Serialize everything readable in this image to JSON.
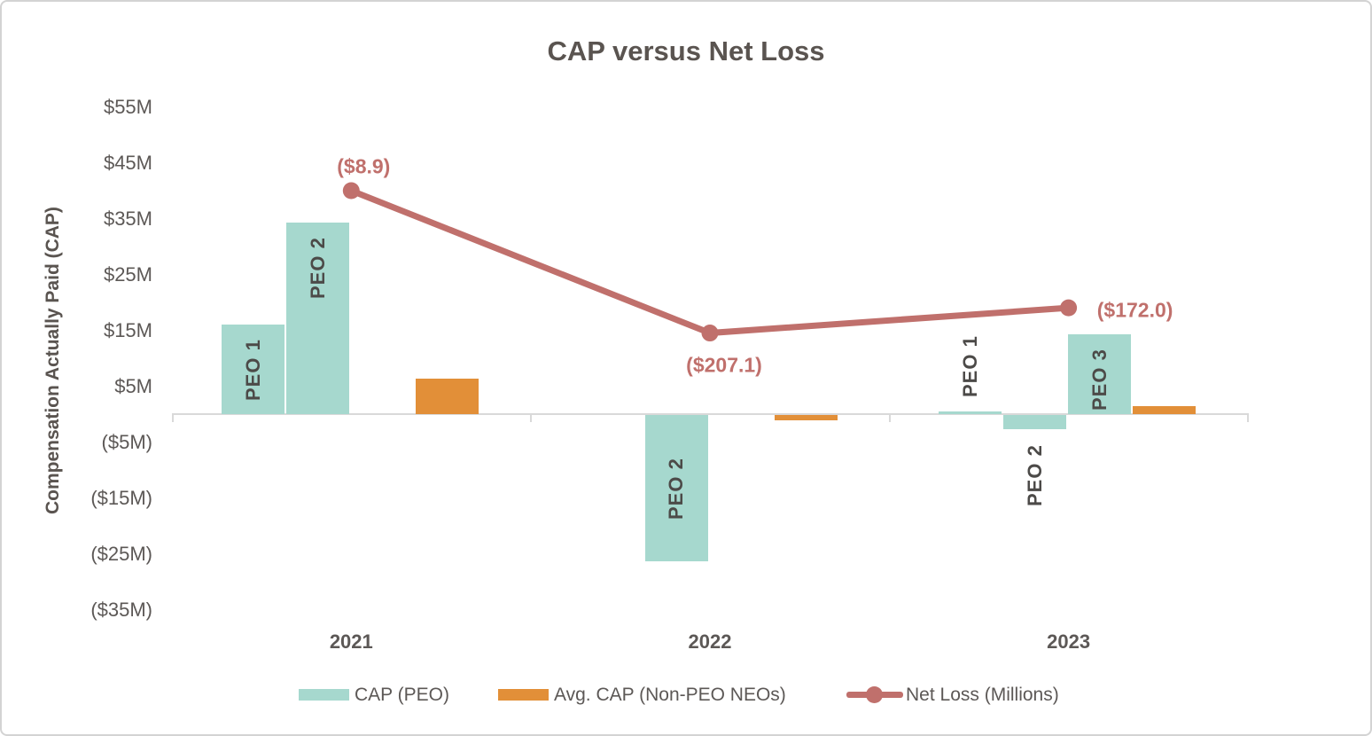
{
  "chart_data": {
    "type": "combo-bar-line",
    "title": "CAP versus Net Loss",
    "ylabel": "Compensation Actually Paid (CAP)",
    "categories": [
      "2021",
      "2022",
      "2023"
    ],
    "y_axis": {
      "units": "$ millions",
      "tick_values": [
        55,
        45,
        35,
        25,
        15,
        5,
        -5,
        -15,
        -25,
        -35
      ],
      "tick_labels": [
        "$55M",
        "$45M",
        "$35M",
        "$25M",
        "$15M",
        "$5M",
        "($5M)",
        "($15M)",
        "($25M)",
        "($35M)"
      ],
      "ylim": [
        -35,
        55
      ],
      "grid": false
    },
    "bars": [
      {
        "year": "2021",
        "series": "CAP (PEO)",
        "label": "PEO 1",
        "slot": 0,
        "value_m": 16.0
      },
      {
        "year": "2021",
        "series": "CAP (PEO)",
        "label": "PEO 2",
        "slot": 1,
        "value_m": 34.3
      },
      {
        "year": "2021",
        "series": "Avg. CAP (Non-PEO NEOs)",
        "label": "",
        "slot": 3,
        "value_m": 6.3
      },
      {
        "year": "2022",
        "series": "CAP (PEO)",
        "label": "PEO 2",
        "slot": 1,
        "value_m": -26.2
      },
      {
        "year": "2022",
        "series": "Avg. CAP (Non-PEO NEOs)",
        "label": "",
        "slot": 3,
        "value_m": -1.0
      },
      {
        "year": "2023",
        "series": "CAP (PEO)",
        "label": "PEO 1",
        "slot": 0,
        "value_m": 0.5
      },
      {
        "year": "2023",
        "series": "CAP (PEO)",
        "label": "PEO 2",
        "slot": 1,
        "value_m": -2.5
      },
      {
        "year": "2023",
        "series": "CAP (PEO)",
        "label": "PEO 3",
        "slot": 2,
        "value_m": 14.3
      },
      {
        "year": "2023",
        "series": "Avg. CAP (Non-PEO NEOs)",
        "label": "",
        "slot": 3,
        "value_m": 1.4
      }
    ],
    "line_series": {
      "name": "Net Loss (Millions)",
      "values_m": [
        -8.9,
        -207.1,
        -172.0
      ],
      "point_labels": [
        "($8.9)",
        "($207.1)",
        "($172.0)"
      ]
    },
    "legend": [
      {
        "type": "bar",
        "color_key": "teal",
        "label": "CAP (PEO)"
      },
      {
        "type": "bar",
        "color_key": "orange",
        "label": "Avg. CAP (Non-PEO NEOs)"
      },
      {
        "type": "line",
        "color_key": "rose",
        "label": "Net Loss (Millions)"
      }
    ],
    "colors": {
      "teal": "#a6d8ce",
      "orange": "#e28f38",
      "rose": "#c0706c",
      "text_gray": "#5c5856",
      "axis_gray": "#d9d9d9"
    }
  }
}
